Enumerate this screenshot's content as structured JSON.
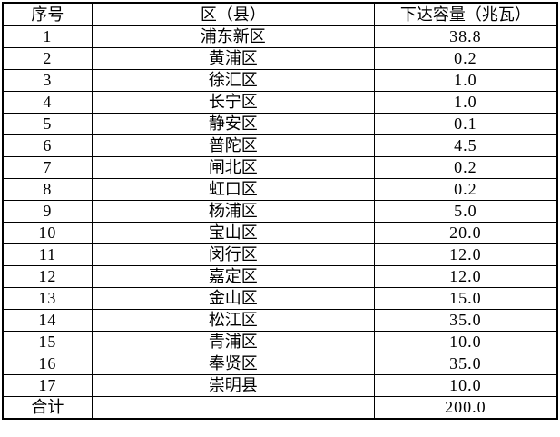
{
  "table": {
    "title": "district-capacity-table",
    "headers": [
      "序号",
      "区（县）",
      "下达容量（兆瓦）"
    ],
    "rows": [
      [
        "1",
        "浦东新区",
        "38.8"
      ],
      [
        "2",
        "黄浦区",
        "0.2"
      ],
      [
        "3",
        "徐汇区",
        "1.0"
      ],
      [
        "4",
        "长宁区",
        "1.0"
      ],
      [
        "5",
        "静安区",
        "0.1"
      ],
      [
        "6",
        "普陀区",
        "4.5"
      ],
      [
        "7",
        "闸北区",
        "0.2"
      ],
      [
        "8",
        "虹口区",
        "0.2"
      ],
      [
        "9",
        "杨浦区",
        "5.0"
      ],
      [
        "10",
        "宝山区",
        "20.0"
      ],
      [
        "11",
        "闵行区",
        "12.0"
      ],
      [
        "12",
        "嘉定区",
        "12.0"
      ],
      [
        "13",
        "金山区",
        "15.0"
      ],
      [
        "14",
        "松江区",
        "35.0"
      ],
      [
        "15",
        "青浦区",
        "10.0"
      ],
      [
        "16",
        "奉贤区",
        "35.0"
      ],
      [
        "17",
        "崇明县",
        "10.0"
      ]
    ],
    "total_row": {
      "label": "合计",
      "district": "",
      "value": "200.0"
    },
    "colors": {
      "border": "#000000",
      "text": "#000000",
      "background": "#ffffff"
    }
  }
}
